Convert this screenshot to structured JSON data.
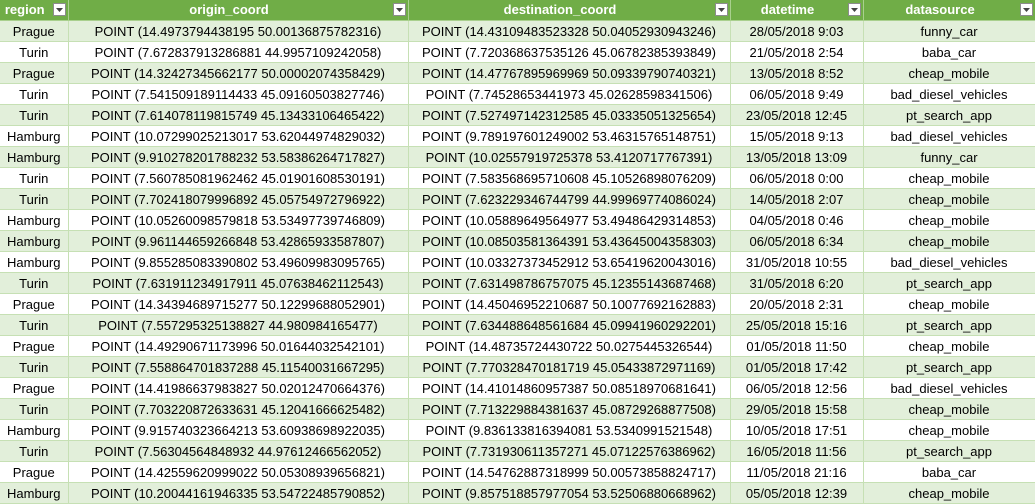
{
  "columns": [
    {
      "key": "region",
      "label": "region"
    },
    {
      "key": "origin",
      "label": "origin_coord"
    },
    {
      "key": "dest",
      "label": "destination_coord"
    },
    {
      "key": "datetime",
      "label": "datetime"
    },
    {
      "key": "source",
      "label": "datasource"
    }
  ],
  "filter_icon": "dropdown-arrow-icon",
  "rows": [
    [
      "Prague",
      "POINT (14.4973794438195 50.00136875782316)",
      "POINT (14.43109483523328 50.04052930943246)",
      "28/05/2018 9:03",
      "funny_car"
    ],
    [
      "Turin",
      "POINT (7.672837913286881 44.9957109242058)",
      "POINT (7.720368637535126 45.06782385393849)",
      "21/05/2018 2:54",
      "baba_car"
    ],
    [
      "Prague",
      "POINT (14.32427345662177 50.00002074358429)",
      "POINT (14.47767895969969 50.09339790740321)",
      "13/05/2018 8:52",
      "cheap_mobile"
    ],
    [
      "Turin",
      "POINT (7.541509189114433 45.09160503827746)",
      "POINT (7.74528653441973 45.02628598341506)",
      "06/05/2018 9:49",
      "bad_diesel_vehicles"
    ],
    [
      "Turin",
      "POINT (7.614078119815749 45.13433106465422)",
      "POINT (7.527497142312585 45.03335051325654)",
      "23/05/2018 12:45",
      "pt_search_app"
    ],
    [
      "Hamburg",
      "POINT (10.07299025213017 53.62044974829032)",
      "POINT (9.789197601249002 53.46315765148751)",
      "15/05/2018 9:13",
      "bad_diesel_vehicles"
    ],
    [
      "Hamburg",
      "POINT (9.910278201788232 53.58386264717827)",
      "POINT (10.02557919725378 53.4120717767391)",
      "13/05/2018 13:09",
      "funny_car"
    ],
    [
      "Turin",
      "POINT (7.560785081962462 45.01901608530191)",
      "POINT (7.583568695710608 45.10526898076209)",
      "06/05/2018 0:00",
      "cheap_mobile"
    ],
    [
      "Turin",
      "POINT (7.702418079996892 45.05754972796922)",
      "POINT (7.623229346744799 44.99969774086024)",
      "14/05/2018 2:07",
      "cheap_mobile"
    ],
    [
      "Hamburg",
      "POINT (10.05260098579818 53.53497739746809)",
      "POINT (10.05889649564977 53.49486429314853)",
      "04/05/2018 0:46",
      "cheap_mobile"
    ],
    [
      "Hamburg",
      "POINT (9.961144659266848 53.42865933587807)",
      "POINT (10.08503581364391 53.43645004358303)",
      "06/05/2018 6:34",
      "cheap_mobile"
    ],
    [
      "Hamburg",
      "POINT (9.855285083390802 53.49609983095765)",
      "POINT (10.03327373452912 53.65419620043016)",
      "31/05/2018 10:55",
      "bad_diesel_vehicles"
    ],
    [
      "Turin",
      "POINT (7.631911234917911 45.07638462112543)",
      "POINT (7.631498786757075 45.12355143687468)",
      "31/05/2018 6:20",
      "pt_search_app"
    ],
    [
      "Prague",
      "POINT (14.34394689715277 50.12299688052901)",
      "POINT (14.45046952210687 50.10077692162883)",
      "20/05/2018 2:31",
      "cheap_mobile"
    ],
    [
      "Turin",
      "POINT (7.557295325138827 44.98098416547​7)",
      "POINT (7.634488648561684 45.09941960292201)",
      "25/05/2018 15:16",
      "pt_search_app"
    ],
    [
      "Prague",
      "POINT (14.49290671173996 50.01644032542101)",
      "POINT (14.48735724430722 50.0275445326544)",
      "01/05/2018 11:50",
      "cheap_mobile"
    ],
    [
      "Turin",
      "POINT (7.558864701837288 45.11540031667295)",
      "POINT (7.770328470181719 45.05433872971169)",
      "01/05/2018 17:42",
      "pt_search_app"
    ],
    [
      "Prague",
      "POINT (14.41986637983827 50.02012470664376)",
      "POINT (14.41014860957387 50.08518970681641)",
      "06/05/2018 12:56",
      "bad_diesel_vehicles"
    ],
    [
      "Turin",
      "POINT (7.703220872633631 45.12041666625482)",
      "POINT (7.713229884381637 45.08729268877508)",
      "29/05/2018 15:58",
      "cheap_mobile"
    ],
    [
      "Hamburg",
      "POINT (9.915740323664213 53.60938698922035)",
      "POINT (9.836133816394081 53.5340991521548)",
      "10/05/2018 17:51",
      "cheap_mobile"
    ],
    [
      "Turin",
      "POINT (7.56304564848932 44.97612466562052)",
      "POINT (7.731930611357271 45.07122576386962)",
      "16/05/2018 11:56",
      "pt_search_app"
    ],
    [
      "Prague",
      "POINT (14.42559620999022 50.05308939656821)",
      "POINT (14.54762887318999 50.00573858824717)",
      "11/05/2018 21:16",
      "baba_car"
    ],
    [
      "Hamburg",
      "POINT (10.20044161946335 53.54722485790852)",
      "POINT (9.857518857977054 53.52506880668962)",
      "05/05/2018 12:39",
      "cheap_mobile"
    ]
  ]
}
